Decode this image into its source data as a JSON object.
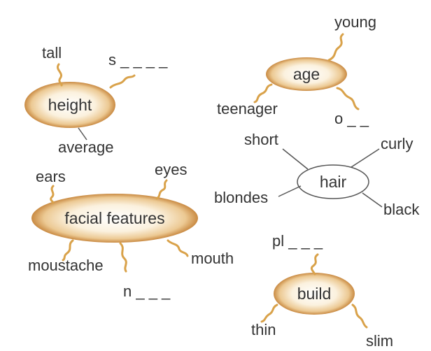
{
  "colors": {
    "text": "#333333",
    "squiggle": "#d9a24a",
    "line": "#555555",
    "oval_light": "#ffffff",
    "oval_warm": "#f6e2bf",
    "oval_edge": "#c98a42",
    "hair_fill": "#ffffff"
  },
  "diagrams": {
    "height": {
      "label": "height",
      "words": {
        "tall": "tall",
        "blank": "s _ _ _ _",
        "average": "average"
      }
    },
    "age": {
      "label": "age",
      "words": {
        "young": "young",
        "teenager": "teenager",
        "blank": "o _ _"
      }
    },
    "hair": {
      "label": "hair",
      "words": {
        "short": "short",
        "curly": "curly",
        "blondes": "blondes",
        "black": "black"
      }
    },
    "facial_features": {
      "label": "facial features",
      "words": {
        "ears": "ears",
        "eyes": "eyes",
        "moustache": "moustache",
        "mouth": "mouth",
        "blank": "n _ _ _"
      }
    },
    "build": {
      "label": "build",
      "words": {
        "blank": "pl _ _ _",
        "thin": "thin",
        "slim": "slim"
      }
    }
  }
}
